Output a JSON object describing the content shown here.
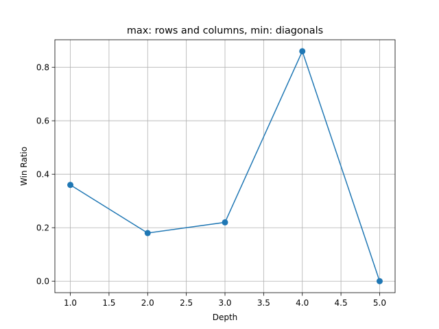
{
  "chart_data": {
    "type": "line",
    "title": "max: rows and columns, min: diagonals",
    "xlabel": "Depth",
    "ylabel": "Win Ratio",
    "x": [
      1,
      2,
      3,
      4,
      5
    ],
    "series": [
      {
        "values": [
          0.36,
          0.18,
          0.22,
          0.86,
          0.0
        ]
      }
    ],
    "xlim": [
      0.8,
      5.2
    ],
    "ylim": [
      -0.043,
      0.903
    ],
    "xticks": [
      1.0,
      1.5,
      2.0,
      2.5,
      3.0,
      3.5,
      4.0,
      4.5,
      5.0
    ],
    "xtick_labels": [
      "1.0",
      "1.5",
      "2.0",
      "2.5",
      "3.0",
      "3.5",
      "4.0",
      "4.5",
      "5.0"
    ],
    "yticks": [
      0.0,
      0.2,
      0.4,
      0.6,
      0.8
    ],
    "ytick_labels": [
      "0.0",
      "0.2",
      "0.4",
      "0.6",
      "0.8"
    ],
    "grid": true,
    "marker": "circle",
    "line_color": "#1f77b4",
    "grid_color": "#b0b0b0"
  }
}
